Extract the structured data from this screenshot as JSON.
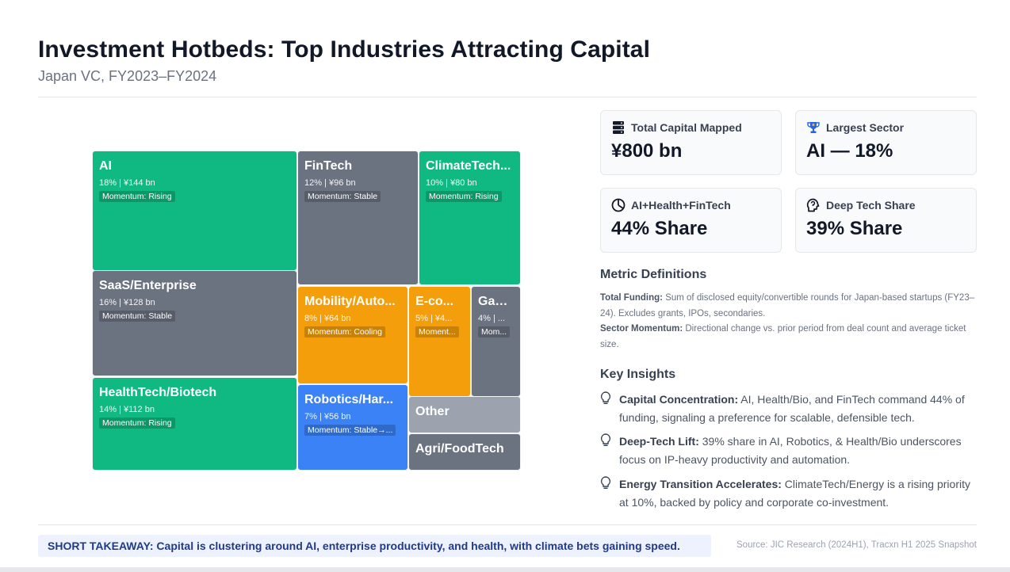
{
  "header": {
    "title": "Investment Hotbeds: Top Industries Attracting Capital",
    "subtitle": "Japan VC, FY2023–FY2024"
  },
  "chart_data": {
    "type": "treemap",
    "unit": "¥ bn",
    "total": 800,
    "items": [
      {
        "name": "AI",
        "name_shown": "AI",
        "share_pct": 18,
        "value": 144,
        "stat_shown": "18% | ¥144 bn",
        "momentum": "Rising",
        "momentum_shown": "Momentum: Rising",
        "color": "#10b981"
      },
      {
        "name": "SaaS/Enterprise",
        "name_shown": "SaaS/Enterprise",
        "share_pct": 16,
        "value": 128,
        "stat_shown": "16% | ¥128 bn",
        "momentum": "Stable",
        "momentum_shown": "Momentum: Stable",
        "color": "#6b7280"
      },
      {
        "name": "HealthTech/Biotech",
        "name_shown": "HealthTech/Biotech",
        "share_pct": 14,
        "value": 112,
        "stat_shown": "14% | ¥112 bn",
        "momentum": "Rising",
        "momentum_shown": "Momentum: Rising",
        "color": "#10b981"
      },
      {
        "name": "FinTech",
        "name_shown": "FinTech",
        "share_pct": 12,
        "value": 96,
        "stat_shown": "12% | ¥96 bn",
        "momentum": "Stable",
        "momentum_shown": "Momentum: Stable",
        "color": "#6b7280"
      },
      {
        "name": "ClimateTech",
        "name_shown": "ClimateTech...",
        "share_pct": 10,
        "value": 80,
        "stat_shown": "10% | ¥80 bn",
        "momentum": "Rising",
        "momentum_shown": "Momentum: Rising",
        "color": "#10b981"
      },
      {
        "name": "Mobility",
        "name_shown": "Mobility/Auto...",
        "share_pct": 8,
        "value": 64,
        "stat_shown": "8% | ¥64 bn",
        "momentum": "Cooling",
        "momentum_shown": "Momentum: Cooling",
        "color": "#f59e0b"
      },
      {
        "name": "Robotics",
        "name_shown": "Robotics/Har...",
        "share_pct": 7,
        "value": 56,
        "stat_shown": "7% | ¥56 bn",
        "momentum": "Stable",
        "momentum_shown": "Momentum: Stable→...",
        "color": "#3b82f6"
      },
      {
        "name": "E-commerce",
        "name_shown": "E-co...",
        "share_pct": 5,
        "stat_shown": "5% | ¥4...",
        "momentum_shown": "Moment...",
        "color": "#f59e0b"
      },
      {
        "name": "Gaming",
        "name_shown": "Gam...",
        "share_pct": 4,
        "stat_shown": "4% | ...",
        "momentum_shown": "Mom...",
        "color": "#6b7280"
      },
      {
        "name": "Other",
        "name_shown": "Other",
        "color": "#9ca3af"
      },
      {
        "name": "Agri/FoodTech",
        "name_shown": "Agri/FoodTech",
        "color": "#6b7280"
      }
    ]
  },
  "kpis": [
    {
      "label": "Total Capital Mapped",
      "value": "¥800 bn",
      "icon": "server-stack-icon"
    },
    {
      "label": "Largest Sector",
      "value": "AI — 18%",
      "icon": "trophy-icon"
    },
    {
      "label": "AI+Health+FinTech",
      "value": "44% Share",
      "icon": "pie-chart-icon"
    },
    {
      "label": "Deep Tech Share",
      "value": "39% Share",
      "icon": "brain-icon"
    }
  ],
  "definitions": {
    "title": "Metric Definitions",
    "items": [
      {
        "term": "Total Funding:",
        "text": "Sum of disclosed equity/convertible rounds for Japan-based startups (FY23–24). Excludes grants, IPOs, secondaries."
      },
      {
        "term": "Sector Momentum:",
        "text": "Directional change vs. prior period from deal count and average ticket size."
      }
    ]
  },
  "insights": {
    "title": "Key Insights",
    "items": [
      {
        "head": "Capital Concentration:",
        "text": "AI, Health/Bio, and FinTech command 44% of funding, signaling a preference for scalable, defensible tech."
      },
      {
        "head": "Deep-Tech Lift:",
        "text": "39% share in AI, Robotics, & Health/Bio underscores focus on IP-heavy productivity and automation."
      },
      {
        "head": "Energy Transition Accelerates:",
        "text": "ClimateTech/Energy is a rising priority at 10%, backed by policy and corporate co-investment."
      }
    ]
  },
  "footer": {
    "takeaway": "SHORT TAKEAWAY: Capital is clustering around AI, enterprise productivity, and health, with climate bets gaining speed.",
    "source": "Source: JIC Research (2024H1), Tracxn H1 2025 Snapshot"
  }
}
